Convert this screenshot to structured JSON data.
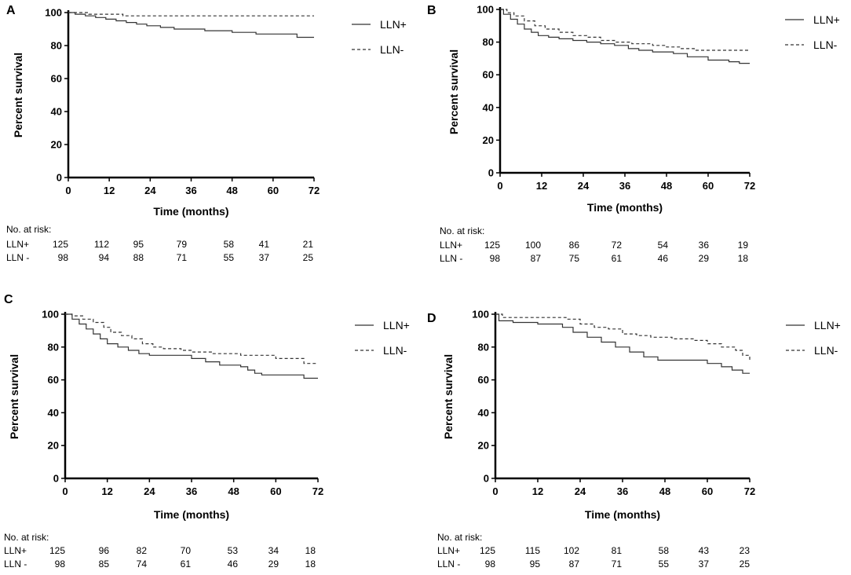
{
  "chart_data": [
    {
      "type": "line",
      "panel": "A",
      "xlabel": "Time (months)",
      "ylabel": "Percent survival",
      "xlim": [
        0,
        72
      ],
      "ylim": [
        0,
        100
      ],
      "xticks": [
        "0",
        "12",
        "24",
        "36",
        "48",
        "60",
        "72"
      ],
      "yticks": [
        "0",
        "20",
        "40",
        "60",
        "80",
        "100"
      ],
      "series": [
        {
          "name": "LLN+",
          "style": "solid",
          "points": [
            [
              0,
              100
            ],
            [
              2,
              99
            ],
            [
              5,
              98
            ],
            [
              8,
              97
            ],
            [
              11,
              96
            ],
            [
              14,
              95
            ],
            [
              17,
              94
            ],
            [
              20,
              93
            ],
            [
              23,
              92
            ],
            [
              27,
              91
            ],
            [
              31,
              90
            ],
            [
              36,
              90
            ],
            [
              40,
              89
            ],
            [
              48,
              88
            ],
            [
              55,
              87
            ],
            [
              62,
              87
            ],
            [
              67,
              85
            ],
            [
              72,
              85
            ]
          ]
        },
        {
          "name": "LLN-",
          "style": "dashed",
          "points": [
            [
              0,
              100
            ],
            [
              6,
              99
            ],
            [
              16,
              98
            ],
            [
              24,
              98
            ],
            [
              72,
              98
            ]
          ]
        }
      ],
      "risk_table": {
        "title": "No. at risk:",
        "rows": [
          {
            "label": "LLN+",
            "values": [
              "125",
              "112",
              "95",
              "79",
              "58",
              "41",
              "21"
            ]
          },
          {
            "label": "LLN -",
            "values": [
              "98",
              "94",
              "88",
              "71",
              "55",
              "37",
              "25"
            ]
          }
        ]
      }
    },
    {
      "type": "line",
      "panel": "B",
      "xlabel": "Time (months)",
      "ylabel": "Percent survival",
      "xlim": [
        0,
        72
      ],
      "ylim": [
        0,
        100
      ],
      "xticks": [
        "0",
        "12",
        "24",
        "36",
        "48",
        "60",
        "72"
      ],
      "yticks": [
        "0",
        "20",
        "40",
        "60",
        "80",
        "100"
      ],
      "series": [
        {
          "name": "LLN+",
          "style": "solid",
          "points": [
            [
              0,
              100
            ],
            [
              1,
              97
            ],
            [
              3,
              94
            ],
            [
              5,
              91
            ],
            [
              7,
              88
            ],
            [
              9,
              86
            ],
            [
              11,
              84
            ],
            [
              14,
              83
            ],
            [
              17,
              82
            ],
            [
              21,
              81
            ],
            [
              25,
              80
            ],
            [
              29,
              79
            ],
            [
              33,
              78
            ],
            [
              37,
              76
            ],
            [
              40,
              75
            ],
            [
              44,
              74
            ],
            [
              50,
              73
            ],
            [
              54,
              71
            ],
            [
              60,
              69
            ],
            [
              66,
              68
            ],
            [
              69,
              67
            ],
            [
              72,
              67
            ]
          ]
        },
        {
          "name": "LLN-",
          "style": "dashed",
          "points": [
            [
              0,
              100
            ],
            [
              2,
              98
            ],
            [
              4,
              96
            ],
            [
              7,
              93
            ],
            [
              10,
              90
            ],
            [
              13,
              88
            ],
            [
              17,
              86
            ],
            [
              21,
              84
            ],
            [
              25,
              83
            ],
            [
              29,
              81
            ],
            [
              33,
              80
            ],
            [
              38,
              79
            ],
            [
              44,
              78
            ],
            [
              48,
              77
            ],
            [
              52,
              76
            ],
            [
              56,
              75
            ],
            [
              72,
              75
            ]
          ]
        }
      ],
      "risk_table": {
        "title": "No. at risk:",
        "rows": [
          {
            "label": "LLN+",
            "values": [
              "125",
              "100",
              "86",
              "72",
              "54",
              "36",
              "19"
            ]
          },
          {
            "label": "LLN -",
            "values": [
              "98",
              "87",
              "75",
              "61",
              "46",
              "29",
              "18"
            ]
          }
        ]
      }
    },
    {
      "type": "line",
      "panel": "C",
      "xlabel": "Time (months)",
      "ylabel": "Percent survival",
      "xlim": [
        0,
        72
      ],
      "ylim": [
        0,
        100
      ],
      "xticks": [
        "0",
        "12",
        "24",
        "36",
        "48",
        "60",
        "72"
      ],
      "yticks": [
        "0",
        "20",
        "40",
        "60",
        "80",
        "100"
      ],
      "series": [
        {
          "name": "LLN+",
          "style": "solid",
          "points": [
            [
              0,
              100
            ],
            [
              2,
              97
            ],
            [
              4,
              94
            ],
            [
              6,
              91
            ],
            [
              8,
              88
            ],
            [
              10,
              85
            ],
            [
              12,
              82
            ],
            [
              15,
              80
            ],
            [
              18,
              78
            ],
            [
              21,
              76
            ],
            [
              24,
              75
            ],
            [
              30,
              75
            ],
            [
              36,
              73
            ],
            [
              40,
              71
            ],
            [
              44,
              69
            ],
            [
              50,
              68
            ],
            [
              52,
              66
            ],
            [
              54,
              64
            ],
            [
              56,
              63
            ],
            [
              62,
              63
            ],
            [
              68,
              61
            ],
            [
              72,
              61
            ]
          ]
        },
        {
          "name": "LLN-",
          "style": "dashed",
          "points": [
            [
              0,
              100
            ],
            [
              2,
              99
            ],
            [
              5,
              97
            ],
            [
              8,
              95
            ],
            [
              11,
              92
            ],
            [
              13,
              89
            ],
            [
              16,
              87
            ],
            [
              19,
              85
            ],
            [
              22,
              82
            ],
            [
              25,
              80
            ],
            [
              28,
              79
            ],
            [
              33,
              78
            ],
            [
              36,
              77
            ],
            [
              42,
              76
            ],
            [
              50,
              75
            ],
            [
              60,
              73
            ],
            [
              64,
              73
            ],
            [
              68,
              70
            ],
            [
              72,
              70
            ]
          ]
        }
      ],
      "risk_table": {
        "title": "No. at risk:",
        "rows": [
          {
            "label": "LLN+",
            "values": [
              "125",
              "96",
              "82",
              "70",
              "53",
              "34",
              "18"
            ]
          },
          {
            "label": "LLN -",
            "values": [
              "98",
              "85",
              "74",
              "61",
              "46",
              "29",
              "18"
            ]
          }
        ]
      }
    },
    {
      "type": "line",
      "panel": "D",
      "xlabel": "Time (months)",
      "ylabel": "Percent survival",
      "xlim": [
        0,
        72
      ],
      "ylim": [
        0,
        100
      ],
      "xticks": [
        "0",
        "12",
        "24",
        "36",
        "48",
        "60",
        "72"
      ],
      "yticks": [
        "0",
        "20",
        "40",
        "60",
        "80",
        "100"
      ],
      "series": [
        {
          "name": "LLN+",
          "style": "solid",
          "points": [
            [
              0,
              100
            ],
            [
              1,
              96
            ],
            [
              5,
              95
            ],
            [
              12,
              94
            ],
            [
              16,
              94
            ],
            [
              19,
              92
            ],
            [
              22,
              89
            ],
            [
              26,
              86
            ],
            [
              30,
              83
            ],
            [
              34,
              80
            ],
            [
              38,
              77
            ],
            [
              42,
              74
            ],
            [
              46,
              72
            ],
            [
              55,
              72
            ],
            [
              60,
              70
            ],
            [
              64,
              68
            ],
            [
              67,
              66
            ],
            [
              70,
              64
            ],
            [
              72,
              64
            ]
          ]
        },
        {
          "name": "LLN-",
          "style": "dashed",
          "points": [
            [
              0,
              100
            ],
            [
              2,
              98
            ],
            [
              12,
              98
            ],
            [
              20,
              97
            ],
            [
              24,
              94
            ],
            [
              28,
              92
            ],
            [
              32,
              91
            ],
            [
              36,
              88
            ],
            [
              40,
              87
            ],
            [
              44,
              86
            ],
            [
              50,
              85
            ],
            [
              56,
              84
            ],
            [
              60,
              82
            ],
            [
              64,
              80
            ],
            [
              68,
              78
            ],
            [
              70,
              75
            ],
            [
              72,
              72
            ]
          ]
        }
      ],
      "risk_table": {
        "title": "No. at risk:",
        "rows": [
          {
            "label": "LLN+",
            "values": [
              "125",
              "115",
              "102",
              "81",
              "58",
              "43",
              "23"
            ]
          },
          {
            "label": "LLN -",
            "values": [
              "98",
              "95",
              "87",
              "71",
              "55",
              "37",
              "25"
            ]
          }
        ]
      }
    }
  ]
}
